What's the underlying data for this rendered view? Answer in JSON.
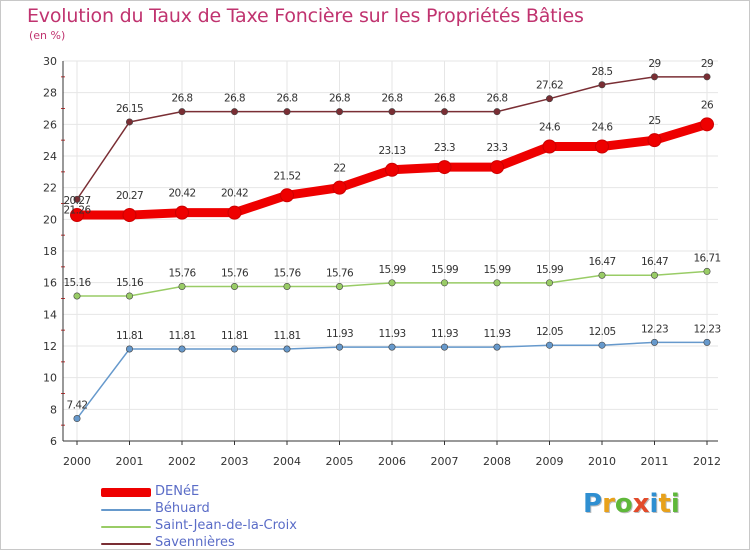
{
  "title": "Evolution du Taux de Taxe Foncière sur les Propriétés Bâties",
  "unit": "(en %)",
  "logo": {
    "text": "Proxiti",
    "letters": [
      {
        "char": "P",
        "color": "#2f8fd1"
      },
      {
        "char": "r",
        "color": "#e8a11a"
      },
      {
        "char": "o",
        "color": "#5fb83a"
      },
      {
        "char": "x",
        "color": "#e24a2a"
      },
      {
        "char": "i",
        "color": "#2f8fd1"
      },
      {
        "char": "t",
        "color": "#e8a11a"
      },
      {
        "char": "i",
        "color": "#5fb83a"
      }
    ]
  },
  "chart_data": {
    "type": "line",
    "title": "Evolution du Taux de Taxe Foncière sur les Propriétés Bâties",
    "ylabel": "(en %)",
    "xlabel": "",
    "ylim": [
      6,
      30
    ],
    "yticks": [
      "6",
      "8",
      "10",
      "12",
      "14",
      "16",
      "18",
      "20",
      "22",
      "24",
      "26",
      "28",
      "30"
    ],
    "x": [
      "2000",
      "2001",
      "2002",
      "2003",
      "2004",
      "2005",
      "2006",
      "2007",
      "2008",
      "2009",
      "2010",
      "2011",
      "2012"
    ],
    "grid": true,
    "series": [
      {
        "name": "DENéE",
        "color": "#ee0000",
        "values": [
          20.27,
          20.27,
          20.42,
          20.42,
          21.52,
          22,
          23.13,
          23.3,
          23.3,
          24.6,
          24.6,
          25,
          26
        ],
        "labels": [
          "20.27",
          "20.27",
          "20.42",
          "20.42",
          "21.52",
          "22",
          "23.13",
          "23.3",
          "23.3",
          "24.6",
          "24.6",
          "25",
          "26"
        ]
      },
      {
        "name": "Béhuard",
        "color": "#6699cc",
        "values": [
          7.42,
          11.81,
          11.81,
          11.81,
          11.81,
          11.93,
          11.93,
          11.93,
          11.93,
          12.05,
          12.05,
          12.23,
          12.23
        ],
        "labels": [
          "7.42",
          "11.81",
          "11.81",
          "11.81",
          "11.81",
          "11.93",
          "11.93",
          "11.93",
          "11.93",
          "12.05",
          "12.05",
          "12.23",
          "12.23"
        ]
      },
      {
        "name": "Saint-Jean-de-la-Croix",
        "color": "#99cc66",
        "values": [
          15.16,
          15.16,
          15.76,
          15.76,
          15.76,
          15.76,
          15.99,
          15.99,
          15.99,
          15.99,
          16.47,
          16.47,
          16.71
        ],
        "labels": [
          "15.16",
          "15.16",
          "15.76",
          "15.76",
          "15.76",
          "15.76",
          "15.99",
          "15.99",
          "15.99",
          "15.99",
          "16.47",
          "16.47",
          "16.71"
        ]
      },
      {
        "name": "Savennières",
        "color": "#7a2e34",
        "values": [
          21.26,
          26.15,
          26.8,
          26.8,
          26.8,
          26.8,
          26.8,
          26.8,
          26.8,
          27.62,
          28.5,
          29,
          29
        ],
        "labels": [
          "21.26",
          "26.15",
          "26.8",
          "26.8",
          "26.8",
          "26.8",
          "26.8",
          "26.8",
          "26.8",
          "27.62",
          "28.5",
          "29",
          "29"
        ]
      }
    ]
  }
}
